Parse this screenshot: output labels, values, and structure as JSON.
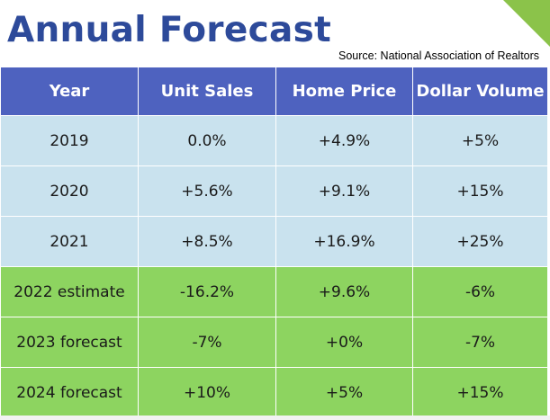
{
  "title": "Annual Forecast",
  "source": "Source: National Association of Realtors",
  "headers": [
    "Year",
    "Unit Sales",
    "Home Price",
    "Dollar Volume"
  ],
  "rows": [
    {
      "year": "2019",
      "unit_sales": "0.0%",
      "home_price": "+4.9%",
      "dollar_volume": "+5%",
      "style": "blue"
    },
    {
      "year": "2020",
      "unit_sales": "+5.6%",
      "home_price": "+9.1%",
      "dollar_volume": "+15%",
      "style": "blue"
    },
    {
      "year": "2021",
      "unit_sales": "+8.5%",
      "home_price": "+16.9%",
      "dollar_volume": "+25%",
      "style": "blue"
    },
    {
      "year": "2022 estimate",
      "unit_sales": "-16.2%",
      "home_price": "+9.6%",
      "dollar_volume": "-6%",
      "style": "green"
    },
    {
      "year": "2023 forecast",
      "unit_sales": "-7%",
      "home_price": "+0%",
      "dollar_volume": "-7%",
      "style": "green"
    },
    {
      "year": "2024 forecast",
      "unit_sales": "+10%",
      "home_price": "+5%",
      "dollar_volume": "+15%",
      "style": "green"
    }
  ],
  "colors": {
    "title": "#2d4a9a",
    "header_bg": "#4e62bf",
    "history_bg": "#c9e2ee",
    "forecast_bg": "#8dd460",
    "accent_corner": "#8bc34a"
  }
}
